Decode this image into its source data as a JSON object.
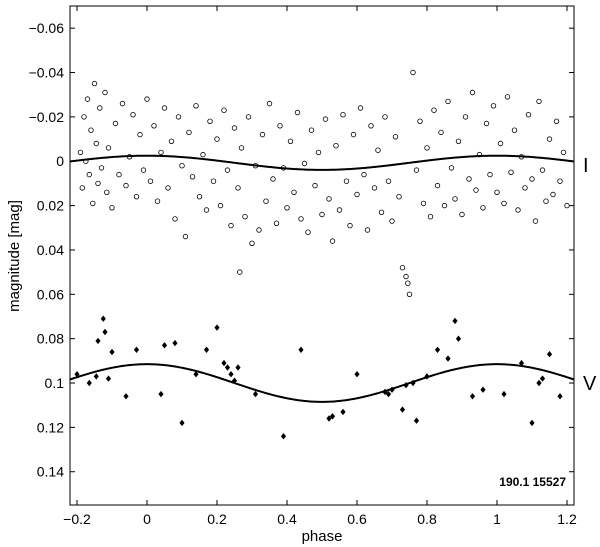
{
  "chart_data": {
    "type": "scatter",
    "title": "",
    "xlabel": "phase",
    "ylabel": "magnitude  [mag]",
    "xlim": [
      -0.22,
      1.22
    ],
    "ylim": [
      0.155,
      -0.07
    ],
    "y_inverted": true,
    "x_ticks": [
      -0.2,
      0,
      0.2,
      0.4,
      0.6,
      0.8,
      1,
      1.2
    ],
    "x_tick_labels": [
      "−0.2",
      "0",
      "0.2",
      "0.4",
      "0.6",
      "0.8",
      "1",
      "1.2"
    ],
    "y_ticks": [
      -0.06,
      -0.04,
      -0.02,
      0,
      0.02,
      0.04,
      0.06,
      0.08,
      0.1,
      0.12,
      0.14
    ],
    "y_tick_labels": [
      "−0.06",
      "−0.04",
      "−0.02",
      "0",
      "0.02",
      "0.04",
      "0.06",
      "0.08",
      "0.1",
      "0.12",
      "0.14"
    ],
    "grid": false,
    "annotation": "190.1 15527",
    "series": [
      {
        "name": "I",
        "marker": "open-circle",
        "fit_curve": {
          "type": "sinusoid",
          "mean": 0.0007,
          "amplitude": 0.0032,
          "phase_of_brightest": 0.0
        },
        "points": [
          [
            -0.19,
            -0.004
          ],
          [
            -0.185,
            0.012
          ],
          [
            -0.18,
            -0.02
          ],
          [
            -0.175,
            0.0
          ],
          [
            -0.17,
            -0.028
          ],
          [
            -0.165,
            0.006
          ],
          [
            -0.16,
            -0.014
          ],
          [
            -0.155,
            0.019
          ],
          [
            -0.15,
            -0.035
          ],
          [
            -0.145,
            -0.008
          ],
          [
            -0.14,
            0.01
          ],
          [
            -0.135,
            -0.024
          ],
          [
            -0.13,
            0.003
          ],
          [
            -0.12,
            -0.031
          ],
          [
            -0.115,
            0.014
          ],
          [
            -0.11,
            -0.006
          ],
          [
            -0.1,
            0.021
          ],
          [
            -0.09,
            -0.017
          ],
          [
            -0.08,
            0.006
          ],
          [
            -0.07,
            -0.026
          ],
          [
            -0.06,
            0.011
          ],
          [
            -0.05,
            -0.002
          ],
          [
            -0.04,
            -0.021
          ],
          [
            -0.03,
            0.016
          ],
          [
            -0.02,
            -0.012
          ],
          [
            -0.01,
            0.004
          ],
          [
            0.0,
            -0.028
          ],
          [
            0.01,
            0.009
          ],
          [
            0.02,
            -0.016
          ],
          [
            0.03,
            0.018
          ],
          [
            0.04,
            -0.004
          ],
          [
            0.05,
            -0.024
          ],
          [
            0.06,
            0.012
          ],
          [
            0.07,
            -0.009
          ],
          [
            0.08,
            0.026
          ],
          [
            0.09,
            -0.02
          ],
          [
            0.1,
            0.002
          ],
          [
            0.11,
            0.034
          ],
          [
            0.12,
            -0.013
          ],
          [
            0.13,
            0.007
          ],
          [
            0.14,
            -0.025
          ],
          [
            0.15,
            0.016
          ],
          [
            0.16,
            -0.003
          ],
          [
            0.17,
            0.022
          ],
          [
            0.18,
            -0.018
          ],
          [
            0.19,
            0.009
          ],
          [
            0.2,
            -0.01
          ],
          [
            0.21,
            0.02
          ],
          [
            0.22,
            -0.023
          ],
          [
            0.23,
            0.004
          ],
          [
            0.24,
            0.029
          ],
          [
            0.25,
            -0.015
          ],
          [
            0.26,
            0.012
          ],
          [
            0.265,
            0.05
          ],
          [
            0.27,
            -0.006
          ],
          [
            0.28,
            0.025
          ],
          [
            0.29,
            -0.02
          ],
          [
            0.3,
            0.037
          ],
          [
            0.31,
            0.002
          ],
          [
            0.32,
            0.031
          ],
          [
            0.33,
            -0.012
          ],
          [
            0.34,
            0.018
          ],
          [
            0.35,
            -0.026
          ],
          [
            0.36,
            0.008
          ],
          [
            0.37,
            0.028
          ],
          [
            0.38,
            -0.016
          ],
          [
            0.39,
            0.003
          ],
          [
            0.4,
            0.021
          ],
          [
            0.41,
            -0.009
          ],
          [
            0.42,
            0.014
          ],
          [
            0.43,
            -0.022
          ],
          [
            0.44,
            0.026
          ],
          [
            0.45,
            0.001
          ],
          [
            0.46,
            0.032
          ],
          [
            0.47,
            -0.014
          ],
          [
            0.48,
            0.011
          ],
          [
            0.49,
            -0.004
          ],
          [
            0.5,
            0.024
          ],
          [
            0.51,
            -0.019
          ],
          [
            0.52,
            0.017
          ],
          [
            0.53,
            0.036
          ],
          [
            0.54,
            -0.007
          ],
          [
            0.55,
            0.022
          ],
          [
            0.56,
            -0.021
          ],
          [
            0.57,
            0.009
          ],
          [
            0.58,
            0.029
          ],
          [
            0.59,
            -0.012
          ],
          [
            0.6,
            0.015
          ],
          [
            0.61,
            -0.024
          ],
          [
            0.62,
            0.006
          ],
          [
            0.63,
            0.031
          ],
          [
            0.64,
            -0.016
          ],
          [
            0.65,
            0.012
          ],
          [
            0.66,
            -0.005
          ],
          [
            0.67,
            0.023
          ],
          [
            0.68,
            -0.02
          ],
          [
            0.69,
            0.009
          ],
          [
            0.7,
            0.027
          ],
          [
            0.71,
            -0.011
          ],
          [
            0.72,
            0.016
          ],
          [
            0.73,
            0.048
          ],
          [
            0.74,
            0.052
          ],
          [
            0.745,
            0.055
          ],
          [
            0.75,
            0.06
          ],
          [
            0.76,
            -0.04
          ],
          [
            0.77,
            0.004
          ],
          [
            0.78,
            -0.018
          ],
          [
            0.79,
            0.019
          ],
          [
            0.8,
            -0.006
          ],
          [
            0.81,
            0.025
          ],
          [
            0.82,
            -0.023
          ],
          [
            0.83,
            0.011
          ],
          [
            0.84,
            -0.013
          ],
          [
            0.85,
            0.02
          ],
          [
            0.86,
            -0.027
          ],
          [
            0.87,
            0.003
          ],
          [
            0.88,
            0.017
          ],
          [
            0.89,
            -0.009
          ],
          [
            0.9,
            0.024
          ],
          [
            0.91,
            -0.02
          ],
          [
            0.92,
            0.008
          ],
          [
            0.93,
            -0.031
          ],
          [
            0.94,
            0.013
          ],
          [
            0.95,
            -0.003
          ],
          [
            0.96,
            0.021
          ],
          [
            0.97,
            -0.017
          ],
          [
            0.98,
            0.006
          ],
          [
            0.99,
            -0.025
          ],
          [
            1.0,
            0.014
          ],
          [
            1.01,
            -0.008
          ],
          [
            1.02,
            0.019
          ],
          [
            1.03,
            -0.029
          ],
          [
            1.04,
            0.005
          ],
          [
            1.05,
            -0.014
          ],
          [
            1.06,
            0.022
          ],
          [
            1.07,
            -0.002
          ],
          [
            1.08,
            0.012
          ],
          [
            1.09,
            -0.021
          ],
          [
            1.1,
            0.008
          ],
          [
            1.11,
            0.027
          ],
          [
            1.12,
            -0.027
          ],
          [
            1.13,
            0.004
          ],
          [
            1.14,
            0.018
          ],
          [
            1.15,
            -0.01
          ],
          [
            1.16,
            0.015
          ],
          [
            1.17,
            -0.018
          ],
          [
            1.18,
            0.009
          ],
          [
            1.19,
            -0.004
          ],
          [
            1.2,
            0.02
          ]
        ]
      },
      {
        "name": "V",
        "marker": "filled-diamond",
        "fit_curve": {
          "type": "sinusoid",
          "mean": 0.1,
          "amplitude": 0.0085,
          "phase_of_brightest": 0.0
        },
        "points": [
          [
            -0.2,
            0.096
          ],
          [
            -0.165,
            0.1
          ],
          [
            -0.145,
            0.097
          ],
          [
            -0.14,
            0.081
          ],
          [
            -0.125,
            0.071
          ],
          [
            -0.12,
            0.077
          ],
          [
            -0.11,
            0.098
          ],
          [
            -0.1,
            0.086
          ],
          [
            -0.06,
            0.106
          ],
          [
            -0.03,
            0.085
          ],
          [
            0.04,
            0.105
          ],
          [
            0.05,
            0.083
          ],
          [
            0.08,
            0.082
          ],
          [
            0.1,
            0.118
          ],
          [
            0.14,
            0.096
          ],
          [
            0.17,
            0.085
          ],
          [
            0.2,
            0.075
          ],
          [
            0.22,
            0.091
          ],
          [
            0.23,
            0.093
          ],
          [
            0.24,
            0.096
          ],
          [
            0.25,
            0.099
          ],
          [
            0.26,
            0.093
          ],
          [
            0.31,
            0.105
          ],
          [
            0.39,
            0.124
          ],
          [
            0.44,
            0.085
          ],
          [
            0.52,
            0.116
          ],
          [
            0.53,
            0.115
          ],
          [
            0.56,
            0.113
          ],
          [
            0.6,
            0.096
          ],
          [
            0.68,
            0.104
          ],
          [
            0.69,
            0.105
          ],
          [
            0.7,
            0.103
          ],
          [
            0.73,
            0.112
          ],
          [
            0.74,
            0.101
          ],
          [
            0.76,
            0.1
          ],
          [
            0.77,
            0.117
          ],
          [
            0.8,
            0.097
          ],
          [
            0.83,
            0.085
          ],
          [
            0.86,
            0.089
          ],
          [
            0.88,
            0.072
          ],
          [
            0.89,
            0.08
          ],
          [
            0.93,
            0.106
          ],
          [
            0.96,
            0.103
          ],
          [
            1.02,
            0.105
          ],
          [
            1.07,
            0.091
          ],
          [
            1.1,
            0.118
          ],
          [
            1.12,
            0.1
          ],
          [
            1.13,
            0.098
          ],
          [
            1.15,
            0.087
          ],
          [
            1.18,
            0.106
          ]
        ]
      }
    ]
  }
}
